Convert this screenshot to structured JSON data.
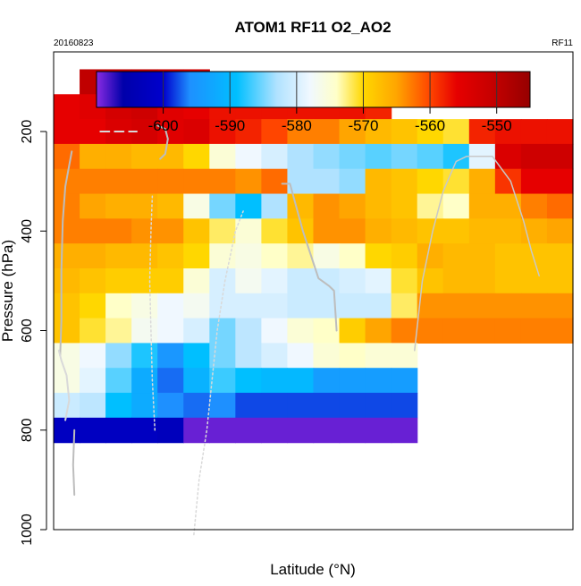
{
  "chart_data": {
    "type": "heatmap",
    "title": "ATOM1 RF11 O2_AO2",
    "left_note": "20160823",
    "right_note": "RF11",
    "xlabel": "Latitude (°N)",
    "ylabel": "Pressure (hPa)",
    "ylim": [
      1000,
      40
    ],
    "y_ticks": [
      "200",
      "400",
      "600",
      "800",
      "1000"
    ],
    "y_tick_values": [
      200,
      400,
      600,
      800,
      1000
    ],
    "colorbar": {
      "range": [
        -610,
        -545
      ],
      "ticks": [
        "-600",
        "-590",
        "-580",
        "-570",
        "-560",
        "-550"
      ],
      "tick_values": [
        -600,
        -590,
        -580,
        -570,
        -560,
        -550
      ]
    },
    "grid": false,
    "legend": "colorbar-top",
    "x_range": [
      0,
      20
    ],
    "y_levels": [
      100,
      150,
      200,
      250,
      300,
      350,
      400,
      450,
      500,
      550,
      600,
      650,
      700,
      750,
      800,
      850
    ],
    "cells": [
      [
        1,
        100,
        -550
      ],
      [
        2,
        100,
        -550
      ],
      [
        3,
        100,
        -550
      ],
      [
        4,
        100,
        -551
      ],
      [
        5,
        100,
        -552
      ],
      [
        0,
        150,
        -556
      ],
      [
        1,
        150,
        -555
      ],
      [
        2,
        150,
        -553
      ],
      [
        3,
        150,
        -552
      ],
      [
        4,
        150,
        -555
      ],
      [
        5,
        150,
        -556
      ],
      [
        6,
        150,
        -557
      ],
      [
        7,
        150,
        -557
      ],
      [
        8,
        150,
        -557
      ],
      [
        9,
        150,
        -557
      ],
      [
        10,
        150,
        -557
      ],
      [
        11,
        150,
        -557
      ],
      [
        12,
        150,
        -558
      ],
      [
        0,
        200,
        -556
      ],
      [
        1,
        200,
        -556
      ],
      [
        2,
        200,
        -554
      ],
      [
        3,
        200,
        -553
      ],
      [
        4,
        200,
        -555
      ],
      [
        5,
        200,
        -554
      ],
      [
        6,
        200,
        -557
      ],
      [
        7,
        200,
        -558
      ],
      [
        8,
        200,
        -560
      ],
      [
        9,
        200,
        -563
      ],
      [
        10,
        200,
        -563
      ],
      [
        11,
        200,
        -565
      ],
      [
        12,
        200,
        -567
      ],
      [
        13,
        200,
        -568
      ],
      [
        14,
        200,
        -570
      ],
      [
        15,
        200,
        -571
      ],
      [
        16,
        200,
        -558
      ],
      [
        17,
        200,
        -557
      ],
      [
        18,
        200,
        -557
      ],
      [
        19,
        200,
        -557
      ],
      [
        0,
        250,
        -562
      ],
      [
        1,
        250,
        -566
      ],
      [
        2,
        250,
        -566
      ],
      [
        3,
        250,
        -567
      ],
      [
        4,
        250,
        -567
      ],
      [
        5,
        250,
        -570
      ],
      [
        6,
        250,
        -575
      ],
      [
        7,
        250,
        -578
      ],
      [
        8,
        250,
        -580
      ],
      [
        9,
        250,
        -583
      ],
      [
        10,
        250,
        -584
      ],
      [
        11,
        250,
        -585
      ],
      [
        12,
        250,
        -586
      ],
      [
        13,
        250,
        -585
      ],
      [
        14,
        250,
        -586
      ],
      [
        15,
        250,
        -588
      ],
      [
        16,
        250,
        -579
      ],
      [
        17,
        250,
        -554
      ],
      [
        18,
        250,
        -552
      ],
      [
        19,
        250,
        -552
      ],
      [
        0,
        300,
        -563
      ],
      [
        1,
        300,
        -563
      ],
      [
        2,
        300,
        -563
      ],
      [
        3,
        300,
        -563
      ],
      [
        4,
        300,
        -563
      ],
      [
        5,
        300,
        -563
      ],
      [
        6,
        300,
        -563
      ],
      [
        7,
        300,
        -564
      ],
      [
        8,
        300,
        -562
      ],
      [
        9,
        300,
        -583
      ],
      [
        10,
        300,
        -583
      ],
      [
        11,
        300,
        -584
      ],
      [
        12,
        300,
        -567
      ],
      [
        13,
        300,
        -568
      ],
      [
        14,
        300,
        -570
      ],
      [
        15,
        300,
        -571
      ],
      [
        16,
        300,
        -566
      ],
      [
        17,
        300,
        -559
      ],
      [
        18,
        300,
        -556
      ],
      [
        19,
        300,
        -556
      ],
      [
        0,
        350,
        -563
      ],
      [
        1,
        350,
        -565
      ],
      [
        2,
        350,
        -566
      ],
      [
        3,
        350,
        -566
      ],
      [
        4,
        350,
        -567
      ],
      [
        5,
        350,
        -576
      ],
      [
        6,
        350,
        -585
      ],
      [
        7,
        350,
        -589
      ],
      [
        8,
        350,
        -583
      ],
      [
        9,
        350,
        -567
      ],
      [
        10,
        350,
        -564
      ],
      [
        11,
        350,
        -565
      ],
      [
        12,
        350,
        -567
      ],
      [
        13,
        350,
        -568
      ],
      [
        14,
        350,
        -573
      ],
      [
        15,
        350,
        -574
      ],
      [
        16,
        350,
        -566
      ],
      [
        17,
        350,
        -566
      ],
      [
        18,
        350,
        -563
      ],
      [
        19,
        350,
        -562
      ],
      [
        0,
        400,
        -563
      ],
      [
        1,
        400,
        -563
      ],
      [
        2,
        400,
        -563
      ],
      [
        3,
        400,
        -564
      ],
      [
        4,
        400,
        -564
      ],
      [
        5,
        400,
        -568
      ],
      [
        6,
        400,
        -572
      ],
      [
        7,
        400,
        -575
      ],
      [
        8,
        400,
        -571
      ],
      [
        9,
        400,
        -568
      ],
      [
        10,
        400,
        -564
      ],
      [
        11,
        400,
        -564
      ],
      [
        12,
        400,
        -566
      ],
      [
        13,
        400,
        -567
      ],
      [
        14,
        400,
        -568
      ],
      [
        15,
        400,
        -568
      ],
      [
        16,
        400,
        -567
      ],
      [
        17,
        400,
        -567
      ],
      [
        18,
        400,
        -566
      ],
      [
        19,
        400,
        -565
      ],
      [
        0,
        450,
        -566
      ],
      [
        1,
        450,
        -566
      ],
      [
        2,
        450,
        -567
      ],
      [
        3,
        450,
        -567
      ],
      [
        4,
        450,
        -568
      ],
      [
        5,
        450,
        -570
      ],
      [
        6,
        450,
        -575
      ],
      [
        7,
        450,
        -576
      ],
      [
        8,
        450,
        -574
      ],
      [
        9,
        450,
        -573
      ],
      [
        10,
        450,
        -576
      ],
      [
        11,
        450,
        -574
      ],
      [
        12,
        450,
        -570
      ],
      [
        13,
        450,
        -569
      ],
      [
        14,
        450,
        -566
      ],
      [
        15,
        450,
        -567
      ],
      [
        16,
        450,
        -567
      ],
      [
        17,
        450,
        -568
      ],
      [
        18,
        450,
        -568
      ],
      [
        19,
        450,
        -568
      ],
      [
        0,
        500,
        -567
      ],
      [
        1,
        500,
        -568
      ],
      [
        2,
        500,
        -569
      ],
      [
        3,
        500,
        -569
      ],
      [
        4,
        500,
        -569
      ],
      [
        5,
        500,
        -575
      ],
      [
        6,
        500,
        -580
      ],
      [
        7,
        500,
        -577
      ],
      [
        8,
        500,
        -579
      ],
      [
        9,
        500,
        -581
      ],
      [
        10,
        500,
        -581
      ],
      [
        11,
        500,
        -580
      ],
      [
        12,
        500,
        -579
      ],
      [
        13,
        500,
        -571
      ],
      [
        14,
        500,
        -568
      ],
      [
        15,
        500,
        -567
      ],
      [
        16,
        500,
        -567
      ],
      [
        17,
        500,
        -568
      ],
      [
        18,
        500,
        -568
      ],
      [
        19,
        500,
        -568
      ],
      [
        0,
        550,
        -568
      ],
      [
        1,
        550,
        -570
      ],
      [
        2,
        550,
        -574
      ],
      [
        3,
        550,
        -576
      ],
      [
        4,
        550,
        -578
      ],
      [
        5,
        550,
        -577
      ],
      [
        6,
        550,
        -580
      ],
      [
        7,
        550,
        -580
      ],
      [
        8,
        550,
        -580
      ],
      [
        9,
        550,
        -581
      ],
      [
        10,
        550,
        -581
      ],
      [
        11,
        550,
        -581
      ],
      [
        12,
        550,
        -581
      ],
      [
        13,
        550,
        -572
      ],
      [
        14,
        550,
        -564
      ],
      [
        15,
        550,
        -564
      ],
      [
        16,
        550,
        -564
      ],
      [
        17,
        550,
        -564
      ],
      [
        18,
        550,
        -564
      ],
      [
        19,
        550,
        -564
      ],
      [
        0,
        600,
        -568
      ],
      [
        1,
        600,
        -571
      ],
      [
        2,
        600,
        -573
      ],
      [
        3,
        600,
        -577
      ],
      [
        4,
        600,
        -578
      ],
      [
        5,
        600,
        -580
      ],
      [
        6,
        600,
        -585
      ],
      [
        7,
        600,
        -582
      ],
      [
        8,
        600,
        -578
      ],
      [
        9,
        600,
        -575
      ],
      [
        10,
        600,
        -574
      ],
      [
        11,
        600,
        -569
      ],
      [
        12,
        600,
        -565
      ],
      [
        13,
        600,
        -563
      ],
      [
        14,
        600,
        -563
      ],
      [
        15,
        600,
        -563
      ],
      [
        16,
        600,
        -563
      ],
      [
        17,
        600,
        -563
      ],
      [
        18,
        600,
        -563
      ],
      [
        19,
        600,
        -563
      ],
      [
        0,
        650,
        -576
      ],
      [
        1,
        650,
        -578
      ],
      [
        2,
        650,
        -584
      ],
      [
        3,
        650,
        -588
      ],
      [
        4,
        650,
        -595
      ],
      [
        5,
        650,
        -589
      ],
      [
        6,
        650,
        -585
      ],
      [
        7,
        650,
        -582
      ],
      [
        8,
        650,
        -580
      ],
      [
        9,
        650,
        -578
      ],
      [
        10,
        650,
        -575
      ],
      [
        11,
        650,
        -574
      ],
      [
        12,
        650,
        -575
      ],
      [
        13,
        650,
        -575
      ],
      [
        0,
        700,
        -576
      ],
      [
        1,
        700,
        -579
      ],
      [
        2,
        700,
        -586
      ],
      [
        3,
        700,
        -592
      ],
      [
        4,
        700,
        -597
      ],
      [
        5,
        700,
        -591
      ],
      [
        6,
        700,
        -587
      ],
      [
        7,
        700,
        -589
      ],
      [
        8,
        700,
        -590
      ],
      [
        9,
        700,
        -590
      ],
      [
        10,
        700,
        -594
      ],
      [
        11,
        700,
        -594
      ],
      [
        12,
        700,
        -594
      ],
      [
        13,
        700,
        -594
      ],
      [
        0,
        750,
        -581
      ],
      [
        1,
        750,
        -582
      ],
      [
        2,
        750,
        -589
      ],
      [
        3,
        750,
        -592
      ],
      [
        4,
        750,
        -596
      ],
      [
        5,
        750,
        -597
      ],
      [
        6,
        750,
        -596
      ],
      [
        7,
        750,
        -598
      ],
      [
        8,
        750,
        -598
      ],
      [
        9,
        750,
        -598
      ],
      [
        10,
        750,
        -598
      ],
      [
        11,
        750,
        -598
      ],
      [
        12,
        750,
        -598
      ],
      [
        13,
        750,
        -598
      ],
      [
        0,
        800,
        -602
      ],
      [
        1,
        800,
        -602
      ],
      [
        2,
        800,
        -602
      ],
      [
        3,
        800,
        -602
      ],
      [
        4,
        800,
        -603
      ],
      [
        5,
        800,
        -609
      ],
      [
        6,
        800,
        -609
      ],
      [
        7,
        800,
        -609
      ],
      [
        8,
        800,
        -609
      ],
      [
        9,
        800,
        -609
      ],
      [
        10,
        800,
        -609
      ],
      [
        11,
        800,
        -609
      ],
      [
        12,
        800,
        -609
      ],
      [
        13,
        800,
        -609
      ]
    ],
    "profiles": [
      {
        "color": "#bdbdbd",
        "width": 2,
        "dash": "",
        "points": [
          [
            0.25,
            650
          ],
          [
            0.3,
            580
          ],
          [
            0.3,
            480
          ],
          [
            0.35,
            380
          ],
          [
            0.45,
            310
          ],
          [
            0.7,
            240
          ]
        ]
      },
      {
        "color": "#d9d9d9",
        "width": 2,
        "dash": "",
        "points": [
          [
            0.45,
            780
          ],
          [
            0.6,
            740
          ],
          [
            0.5,
            690
          ],
          [
            0.3,
            660
          ],
          [
            0.2,
            640
          ]
        ]
      },
      {
        "color": "#bdbdbd",
        "width": 2,
        "dash": "",
        "points": [
          [
            0.8,
            930
          ],
          [
            0.75,
            870
          ],
          [
            0.8,
            800
          ]
        ]
      },
      {
        "color": "#d9d9d9",
        "width": 2,
        "dash": "10 6",
        "points": [
          [
            1.8,
            200
          ],
          [
            3.2,
            200
          ]
        ]
      },
      {
        "color": "#bdbdbd",
        "width": 2,
        "dash": "",
        "points": [
          [
            4.0,
            188
          ],
          [
            4.3,
            195
          ],
          [
            4.4,
            215
          ],
          [
            4.3,
            245
          ],
          [
            4.1,
            255
          ]
        ]
      },
      {
        "color": "#d9d9d9",
        "width": 1.5,
        "dash": "2 3",
        "points": [
          [
            3.9,
            800
          ],
          [
            3.8,
            700
          ],
          [
            3.75,
            600
          ],
          [
            3.7,
            500
          ],
          [
            3.75,
            400
          ],
          [
            3.8,
            330
          ]
        ]
      },
      {
        "color": "#d9d9d9",
        "width": 1.5,
        "dash": "2 3",
        "points": [
          [
            5.4,
            1010
          ],
          [
            5.6,
            900
          ],
          [
            5.9,
            800
          ],
          [
            6.1,
            700
          ],
          [
            6.3,
            600
          ],
          [
            6.6,
            500
          ],
          [
            7.0,
            400
          ],
          [
            7.3,
            360
          ]
        ]
      },
      {
        "color": "#bdbdbd",
        "width": 2,
        "dash": "",
        "points": [
          [
            8.8,
            305
          ],
          [
            9.1,
            305
          ],
          [
            9.6,
            400
          ],
          [
            10.2,
            495
          ],
          [
            10.6,
            510
          ],
          [
            10.8,
            520
          ],
          [
            10.9,
            600
          ]
        ]
      },
      {
        "color": "#c8c8c8",
        "width": 1.5,
        "dash": "",
        "points": [
          [
            13.9,
            640
          ],
          [
            14.2,
            500
          ],
          [
            14.6,
            400
          ],
          [
            15.0,
            320
          ],
          [
            15.5,
            260
          ],
          [
            15.9,
            250
          ],
          [
            16.9,
            250
          ],
          [
            17.6,
            300
          ],
          [
            18.1,
            380
          ],
          [
            18.4,
            440
          ],
          [
            18.7,
            490
          ]
        ]
      }
    ]
  }
}
